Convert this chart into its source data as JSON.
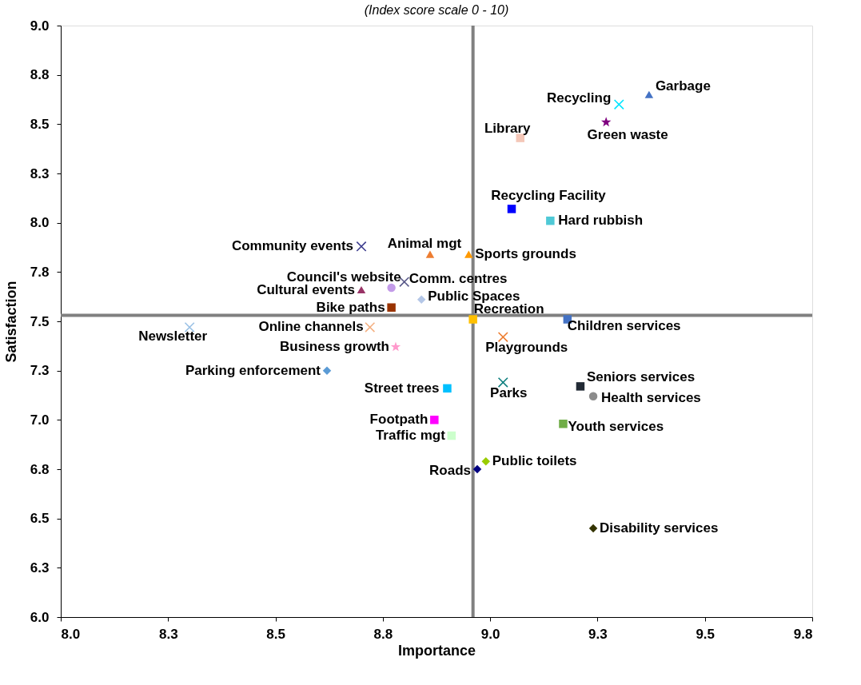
{
  "chart_data": {
    "type": "scatter",
    "subtitle": "(Index score scale 0 - 10)",
    "xlabel": "Importance",
    "ylabel": "Satisfaction",
    "xlim": [
      8.0,
      9.75
    ],
    "xticks": [
      {
        "value": 8,
        "label": "8.0"
      },
      {
        "value": 8.25,
        "label": "8.3"
      },
      8.5,
      {
        "value": 8.75,
        "label": "8.8"
      },
      {
        "value": 9,
        "label": "9.0"
      },
      {
        "value": 9.25,
        "label": "9.3"
      },
      9.5,
      {
        "value": 9.75,
        "label": "9.8"
      }
    ],
    "ylim": [
      6.0,
      9.0
    ],
    "yticks": [
      {
        "value": 6,
        "label": "6.0"
      },
      {
        "value": 6.25,
        "label": "6.3"
      },
      6.5,
      {
        "value": 6.75,
        "label": "6.8"
      },
      {
        "value": 7,
        "label": "7.0"
      },
      {
        "value": 7.25,
        "label": "7.3"
      },
      7.5,
      {
        "value": 7.75,
        "label": "7.8"
      },
      {
        "value": 8,
        "label": "8.0"
      },
      {
        "value": 8.25,
        "label": "8.3"
      },
      8.5,
      {
        "value": 8.75,
        "label": "8.8"
      },
      {
        "value": 9,
        "label": "9.0"
      }
    ],
    "grid": false,
    "ref_lines": [
      {
        "axis": "x",
        "value": 8.96,
        "color": "#808080"
      },
      {
        "axis": "y",
        "value": 7.53,
        "color": "#808080"
      }
    ],
    "series": [
      {
        "name": "Garbage",
        "color": "#4472c4",
        "marker": "triangle",
        "x": [
          9.37
        ],
        "values": [
          8.65
        ]
      },
      {
        "name": "Recycling",
        "color": "#00e5ff",
        "marker": "cross",
        "x": [
          9.3
        ],
        "values": [
          8.6
        ]
      },
      {
        "name": "Green waste",
        "color": "#7f007f",
        "marker": "star",
        "x": [
          9.27
        ],
        "values": [
          8.51
        ]
      },
      {
        "name": "Library",
        "color": "#f4c7b8",
        "marker": "square",
        "x": [
          9.07
        ],
        "values": [
          8.43
        ]
      },
      {
        "name": "Recycling Facility",
        "color": "#0000ff",
        "marker": "square",
        "x": [
          9.05
        ],
        "values": [
          8.07
        ]
      },
      {
        "name": "Hard rubbish",
        "color": "#4fc9d6",
        "marker": "square",
        "x": [
          9.14
        ],
        "values": [
          8.01
        ]
      },
      {
        "name": "Community events",
        "color": "#3f3f8f",
        "marker": "cross",
        "x": [
          8.7
        ],
        "values": [
          7.88
        ]
      },
      {
        "name": "Animal mgt",
        "color": "#ed7d31",
        "marker": "triangle",
        "x": [
          8.86
        ],
        "values": [
          7.84
        ]
      },
      {
        "name": "Sports grounds",
        "color": "#ff9900",
        "marker": "triangle",
        "x": [
          8.95
        ],
        "values": [
          7.84
        ]
      },
      {
        "name": "Comm. centres",
        "color": "#5a5a8a",
        "marker": "cross",
        "x": [
          8.8
        ],
        "values": [
          7.7
        ]
      },
      {
        "name": "Council's website",
        "color": "#c39be8",
        "marker": "circle",
        "x": [
          8.77
        ],
        "values": [
          7.67
        ]
      },
      {
        "name": "Cultural events",
        "color": "#993366",
        "marker": "triangle",
        "x": [
          8.7
        ],
        "values": [
          7.66
        ]
      },
      {
        "name": "Public Spaces",
        "color": "#b4c7e7",
        "marker": "diamond",
        "x": [
          8.84
        ],
        "values": [
          7.61
        ]
      },
      {
        "name": "Bike paths",
        "color": "#993300",
        "marker": "square",
        "x": [
          8.77
        ],
        "values": [
          7.57
        ]
      },
      {
        "name": "Recreation",
        "color": "#ffc000",
        "marker": "square",
        "x": [
          8.96
        ],
        "values": [
          7.51
        ]
      },
      {
        "name": "Children services",
        "color": "#4472c4",
        "marker": "square",
        "x": [
          9.18
        ],
        "values": [
          7.51
        ]
      },
      {
        "name": "Newsletter",
        "color": "#9dc3e6",
        "marker": "cross",
        "x": [
          8.3
        ],
        "values": [
          7.47
        ]
      },
      {
        "name": "Online channels",
        "color": "#f4b183",
        "marker": "cross",
        "x": [
          8.72
        ],
        "values": [
          7.47
        ]
      },
      {
        "name": "Playgrounds",
        "color": "#ed7d31",
        "marker": "cross",
        "x": [
          9.03
        ],
        "values": [
          7.42
        ]
      },
      {
        "name": "Business growth",
        "color": "#ff99cc",
        "marker": "star",
        "x": [
          8.78
        ],
        "values": [
          7.37
        ]
      },
      {
        "name": "Parking enforcement",
        "color": "#5b9bd5",
        "marker": "diamond",
        "x": [
          8.62
        ],
        "values": [
          7.25
        ]
      },
      {
        "name": "Parks",
        "color": "#0f7f7f",
        "marker": "cross",
        "x": [
          9.03
        ],
        "values": [
          7.19
        ]
      },
      {
        "name": "Seniors services",
        "color": "#222a35",
        "marker": "square",
        "x": [
          9.21
        ],
        "values": [
          7.17
        ]
      },
      {
        "name": "Health services",
        "color": "#8c8c8c",
        "marker": "circle",
        "x": [
          9.24
        ],
        "values": [
          7.12
        ]
      },
      {
        "name": "Street trees",
        "color": "#00c0ff",
        "marker": "square",
        "x": [
          8.9
        ],
        "values": [
          7.16
        ]
      },
      {
        "name": "Footpath",
        "color": "#ff00ff",
        "marker": "square",
        "x": [
          8.87
        ],
        "values": [
          7.0
        ]
      },
      {
        "name": "Youth services",
        "color": "#70ad47",
        "marker": "square",
        "x": [
          9.17
        ],
        "values": [
          6.98
        ]
      },
      {
        "name": "Traffic mgt",
        "color": "#ccffcc",
        "marker": "square",
        "x": [
          8.91
        ],
        "values": [
          6.92
        ]
      },
      {
        "name": "Public toilets",
        "color": "#99cc00",
        "marker": "diamond",
        "x": [
          8.99
        ],
        "values": [
          6.79
        ]
      },
      {
        "name": "Roads",
        "color": "#000080",
        "marker": "diamond",
        "x": [
          8.97
        ],
        "values": [
          6.75
        ]
      },
      {
        "name": "Disability services",
        "color": "#333300",
        "marker": "diamond",
        "x": [
          9.24
        ],
        "values": [
          6.45
        ]
      }
    ]
  }
}
